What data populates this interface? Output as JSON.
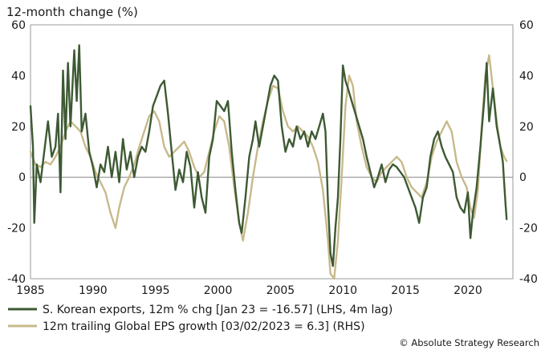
{
  "chart_data": {
    "type": "line",
    "ylabel": "12-month change (%)",
    "xlim": [
      1985,
      2023.6
    ],
    "ylim": [
      -40,
      60
    ],
    "y_right_lim": [
      -40,
      60
    ],
    "x_ticks": [
      "1985",
      "1990",
      "1995",
      "2000",
      "2005",
      "2010",
      "2015",
      "2020"
    ],
    "y_ticks": [
      "-40",
      "-20",
      "0",
      "20",
      "40",
      "60"
    ],
    "y_right_ticks": [
      "-40",
      "-20",
      "0",
      "20",
      "40",
      "60"
    ],
    "grid": false,
    "zero_line": true,
    "legend_position": "bottom-left",
    "credit": "© Absolute Strategy Research",
    "series": [
      {
        "name": "S. Korean exports, 12m % chg [Jan 23 = -16.57] (LHS, 4m lag)",
        "color": "#3d5a33",
        "axis": "left",
        "points": [
          [
            1985.0,
            28
          ],
          [
            1985.2,
            12
          ],
          [
            1985.3,
            -18
          ],
          [
            1985.5,
            5
          ],
          [
            1985.8,
            -2
          ],
          [
            1986.1,
            10
          ],
          [
            1986.4,
            22
          ],
          [
            1986.7,
            8
          ],
          [
            1987.0,
            12
          ],
          [
            1987.2,
            25
          ],
          [
            1987.4,
            -6
          ],
          [
            1987.6,
            42
          ],
          [
            1987.8,
            15
          ],
          [
            1988.0,
            45
          ],
          [
            1988.2,
            20
          ],
          [
            1988.5,
            50
          ],
          [
            1988.7,
            30
          ],
          [
            1988.9,
            52
          ],
          [
            1989.1,
            18
          ],
          [
            1989.4,
            25
          ],
          [
            1989.7,
            10
          ],
          [
            1990.0,
            4
          ],
          [
            1990.3,
            -4
          ],
          [
            1990.6,
            5
          ],
          [
            1990.9,
            2
          ],
          [
            1991.2,
            12
          ],
          [
            1991.5,
            0
          ],
          [
            1991.8,
            10
          ],
          [
            1992.1,
            -2
          ],
          [
            1992.4,
            15
          ],
          [
            1992.7,
            3
          ],
          [
            1993.0,
            10
          ],
          [
            1993.3,
            0
          ],
          [
            1993.6,
            8
          ],
          [
            1993.9,
            12
          ],
          [
            1994.2,
            10
          ],
          [
            1994.5,
            18
          ],
          [
            1994.8,
            28
          ],
          [
            1995.1,
            32
          ],
          [
            1995.4,
            36
          ],
          [
            1995.7,
            38
          ],
          [
            1996.0,
            25
          ],
          [
            1996.3,
            10
          ],
          [
            1996.6,
            -5
          ],
          [
            1996.9,
            3
          ],
          [
            1997.2,
            -2
          ],
          [
            1997.5,
            10
          ],
          [
            1997.8,
            4
          ],
          [
            1998.1,
            -12
          ],
          [
            1998.4,
            2
          ],
          [
            1998.7,
            -8
          ],
          [
            1999.0,
            -14
          ],
          [
            1999.3,
            8
          ],
          [
            1999.6,
            15
          ],
          [
            1999.9,
            30
          ],
          [
            2000.2,
            28
          ],
          [
            2000.5,
            26
          ],
          [
            2000.8,
            30
          ],
          [
            2001.1,
            10
          ],
          [
            2001.4,
            -5
          ],
          [
            2001.7,
            -18
          ],
          [
            2001.9,
            -22
          ],
          [
            2002.2,
            -8
          ],
          [
            2002.5,
            8
          ],
          [
            2002.8,
            15
          ],
          [
            2003.0,
            22
          ],
          [
            2003.3,
            12
          ],
          [
            2003.6,
            20
          ],
          [
            2003.9,
            28
          ],
          [
            2004.2,
            36
          ],
          [
            2004.5,
            40
          ],
          [
            2004.8,
            38
          ],
          [
            2005.1,
            20
          ],
          [
            2005.4,
            10
          ],
          [
            2005.7,
            15
          ],
          [
            2006.0,
            12
          ],
          [
            2006.3,
            20
          ],
          [
            2006.6,
            15
          ],
          [
            2006.9,
            18
          ],
          [
            2007.2,
            12
          ],
          [
            2007.5,
            18
          ],
          [
            2007.8,
            15
          ],
          [
            2008.1,
            20
          ],
          [
            2008.4,
            25
          ],
          [
            2008.6,
            18
          ],
          [
            2008.8,
            -10
          ],
          [
            2009.0,
            -30
          ],
          [
            2009.2,
            -35
          ],
          [
            2009.4,
            -20
          ],
          [
            2009.6,
            -8
          ],
          [
            2009.8,
            15
          ],
          [
            2010.0,
            44
          ],
          [
            2010.2,
            38
          ],
          [
            2010.4,
            35
          ],
          [
            2010.7,
            30
          ],
          [
            2011.0,
            25
          ],
          [
            2011.3,
            20
          ],
          [
            2011.6,
            15
          ],
          [
            2011.9,
            8
          ],
          [
            2012.2,
            2
          ],
          [
            2012.5,
            -4
          ],
          [
            2012.8,
            0
          ],
          [
            2013.1,
            5
          ],
          [
            2013.4,
            -2
          ],
          [
            2013.7,
            3
          ],
          [
            2014.0,
            5
          ],
          [
            2014.3,
            4
          ],
          [
            2014.6,
            2
          ],
          [
            2014.9,
            0
          ],
          [
            2015.2,
            -4
          ],
          [
            2015.5,
            -8
          ],
          [
            2015.8,
            -12
          ],
          [
            2016.1,
            -18
          ],
          [
            2016.4,
            -8
          ],
          [
            2016.7,
            -4
          ],
          [
            2017.0,
            8
          ],
          [
            2017.3,
            15
          ],
          [
            2017.6,
            18
          ],
          [
            2017.9,
            12
          ],
          [
            2018.2,
            8
          ],
          [
            2018.5,
            5
          ],
          [
            2018.8,
            2
          ],
          [
            2019.1,
            -8
          ],
          [
            2019.4,
            -12
          ],
          [
            2019.7,
            -14
          ],
          [
            2020.0,
            -6
          ],
          [
            2020.2,
            -24
          ],
          [
            2020.4,
            -14
          ],
          [
            2020.7,
            -4
          ],
          [
            2021.0,
            12
          ],
          [
            2021.3,
            30
          ],
          [
            2021.5,
            45
          ],
          [
            2021.7,
            22
          ],
          [
            2022.0,
            35
          ],
          [
            2022.3,
            20
          ],
          [
            2022.6,
            12
          ],
          [
            2022.8,
            6
          ],
          [
            2023.0,
            -10
          ],
          [
            2023.1,
            -16.57
          ]
        ]
      },
      {
        "name": "12m trailing Global EPS growth [03/02/2023 = 6.3] (RHS)",
        "color": "#c8b98b",
        "axis": "right",
        "points": [
          [
            1985.0,
            10
          ],
          [
            1985.4,
            5
          ],
          [
            1985.8,
            4
          ],
          [
            1986.2,
            6
          ],
          [
            1986.6,
            5
          ],
          [
            1987.0,
            8
          ],
          [
            1987.4,
            12
          ],
          [
            1987.8,
            18
          ],
          [
            1988.2,
            22
          ],
          [
            1988.6,
            20
          ],
          [
            1989.0,
            18
          ],
          [
            1989.4,
            12
          ],
          [
            1989.8,
            8
          ],
          [
            1990.2,
            2
          ],
          [
            1990.6,
            -2
          ],
          [
            1991.0,
            -6
          ],
          [
            1991.4,
            -14
          ],
          [
            1991.8,
            -20
          ],
          [
            1992.1,
            -12
          ],
          [
            1992.5,
            -4
          ],
          [
            1992.9,
            0
          ],
          [
            1993.3,
            5
          ],
          [
            1993.7,
            12
          ],
          [
            1994.1,
            18
          ],
          [
            1994.5,
            24
          ],
          [
            1994.9,
            26
          ],
          [
            1995.3,
            22
          ],
          [
            1995.7,
            12
          ],
          [
            1996.1,
            8
          ],
          [
            1996.5,
            10
          ],
          [
            1996.9,
            12
          ],
          [
            1997.3,
            14
          ],
          [
            1997.7,
            10
          ],
          [
            1998.1,
            4
          ],
          [
            1998.5,
            0
          ],
          [
            1998.9,
            2
          ],
          [
            1999.3,
            10
          ],
          [
            1999.7,
            18
          ],
          [
            2000.1,
            24
          ],
          [
            2000.5,
            22
          ],
          [
            2000.9,
            12
          ],
          [
            2001.3,
            -4
          ],
          [
            2001.7,
            -18
          ],
          [
            2002.0,
            -25
          ],
          [
            2002.4,
            -14
          ],
          [
            2002.8,
            0
          ],
          [
            2003.2,
            12
          ],
          [
            2003.6,
            22
          ],
          [
            2004.0,
            30
          ],
          [
            2004.4,
            36
          ],
          [
            2004.8,
            35
          ],
          [
            2005.2,
            26
          ],
          [
            2005.6,
            20
          ],
          [
            2006.0,
            18
          ],
          [
            2006.4,
            20
          ],
          [
            2006.8,
            18
          ],
          [
            2007.2,
            16
          ],
          [
            2007.6,
            12
          ],
          [
            2008.0,
            6
          ],
          [
            2008.4,
            -5
          ],
          [
            2008.8,
            -25
          ],
          [
            2009.0,
            -38
          ],
          [
            2009.3,
            -40
          ],
          [
            2009.6,
            -25
          ],
          [
            2009.9,
            0
          ],
          [
            2010.2,
            28
          ],
          [
            2010.5,
            40
          ],
          [
            2010.8,
            36
          ],
          [
            2011.1,
            22
          ],
          [
            2011.5,
            12
          ],
          [
            2011.9,
            4
          ],
          [
            2012.3,
            0
          ],
          [
            2012.7,
            -2
          ],
          [
            2013.1,
            2
          ],
          [
            2013.5,
            4
          ],
          [
            2013.9,
            6
          ],
          [
            2014.3,
            8
          ],
          [
            2014.7,
            6
          ],
          [
            2015.1,
            0
          ],
          [
            2015.5,
            -4
          ],
          [
            2015.9,
            -6
          ],
          [
            2016.3,
            -8
          ],
          [
            2016.7,
            -2
          ],
          [
            2017.1,
            8
          ],
          [
            2017.5,
            14
          ],
          [
            2017.9,
            18
          ],
          [
            2018.3,
            22
          ],
          [
            2018.7,
            18
          ],
          [
            2019.1,
            6
          ],
          [
            2019.5,
            0
          ],
          [
            2019.9,
            -4
          ],
          [
            2020.2,
            -12
          ],
          [
            2020.5,
            -16
          ],
          [
            2020.8,
            -5
          ],
          [
            2021.1,
            20
          ],
          [
            2021.4,
            40
          ],
          [
            2021.7,
            48
          ],
          [
            2022.0,
            35
          ],
          [
            2022.3,
            22
          ],
          [
            2022.6,
            12
          ],
          [
            2022.9,
            8
          ],
          [
            2023.1,
            6.3
          ]
        ]
      }
    ]
  }
}
